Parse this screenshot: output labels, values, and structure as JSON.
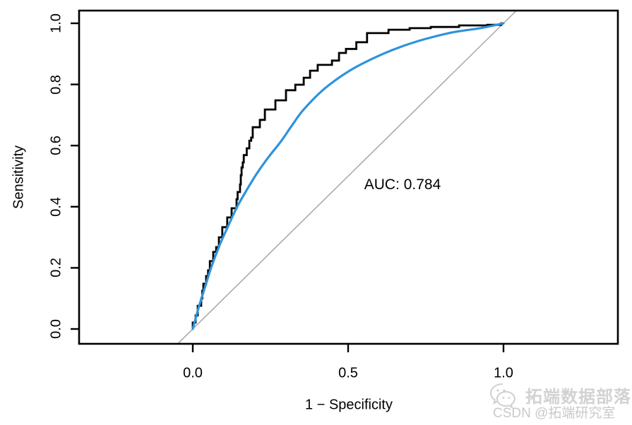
{
  "chart_data": {
    "type": "line",
    "title": "",
    "xlabel": "1 − Specificity",
    "ylabel": "Sensitivity",
    "xlim": [
      0,
      1
    ],
    "ylim": [
      0,
      1
    ],
    "x_ticks": {
      "values": [
        0.0,
        0.5,
        1.0
      ],
      "labels": [
        "0.0",
        "0.5",
        "1.0"
      ]
    },
    "y_ticks": {
      "values": [
        0.0,
        0.2,
        0.4,
        0.6,
        0.8,
        1.0
      ],
      "labels": [
        "0.0",
        "0.2",
        "0.4",
        "0.6",
        "0.8",
        "1.0"
      ]
    },
    "grid": false,
    "legend": "none",
    "annotation": {
      "text": "AUC: 0.784",
      "x": 0.675,
      "y": 0.47
    },
    "auc": 0.784,
    "series": [
      {
        "name": "empirical-roc",
        "style": "step",
        "color": "#000000",
        "width": 2.8,
        "points": [
          [
            0.0,
            0.0
          ],
          [
            0.009,
            0.021
          ],
          [
            0.016,
            0.044
          ],
          [
            0.027,
            0.076
          ],
          [
            0.034,
            0.125
          ],
          [
            0.043,
            0.148
          ],
          [
            0.055,
            0.192
          ],
          [
            0.066,
            0.222
          ],
          [
            0.084,
            0.268
          ],
          [
            0.095,
            0.3
          ],
          [
            0.111,
            0.333
          ],
          [
            0.125,
            0.365
          ],
          [
            0.141,
            0.395
          ],
          [
            0.152,
            0.448
          ],
          [
            0.157,
            0.503
          ],
          [
            0.164,
            0.545
          ],
          [
            0.182,
            0.591
          ],
          [
            0.193,
            0.626
          ],
          [
            0.216,
            0.66
          ],
          [
            0.232,
            0.684
          ],
          [
            0.266,
            0.718
          ],
          [
            0.3,
            0.748
          ],
          [
            0.33,
            0.781
          ],
          [
            0.357,
            0.799
          ],
          [
            0.402,
            0.845
          ],
          [
            0.448,
            0.864
          ],
          [
            0.493,
            0.903
          ],
          [
            0.561,
            0.938
          ],
          [
            0.63,
            0.968
          ],
          [
            0.698,
            0.979
          ],
          [
            0.766,
            0.984
          ],
          [
            0.857,
            0.988
          ],
          [
            0.948,
            0.993
          ],
          [
            0.993,
            0.995
          ],
          [
            1.0,
            1.0
          ]
        ]
      },
      {
        "name": "smoothed-roc",
        "style": "smooth",
        "color": "#2e93dc",
        "width": 3.2,
        "points": [
          [
            0.0,
            0.0
          ],
          [
            0.018,
            0.067
          ],
          [
            0.039,
            0.136
          ],
          [
            0.061,
            0.206
          ],
          [
            0.086,
            0.273
          ],
          [
            0.114,
            0.337
          ],
          [
            0.143,
            0.4
          ],
          [
            0.175,
            0.457
          ],
          [
            0.209,
            0.513
          ],
          [
            0.245,
            0.564
          ],
          [
            0.284,
            0.614
          ],
          [
            0.32,
            0.667
          ],
          [
            0.357,
            0.718
          ],
          [
            0.425,
            0.787
          ],
          [
            0.505,
            0.845
          ],
          [
            0.584,
            0.887
          ],
          [
            0.664,
            0.921
          ],
          [
            0.743,
            0.947
          ],
          [
            0.834,
            0.97
          ],
          [
            0.925,
            0.984
          ],
          [
            1.0,
            1.0
          ]
        ]
      }
    ],
    "reference_line": {
      "name": "chance-diagonal",
      "slope": 1,
      "intercept": 0,
      "color": "#a6a6a6",
      "width": 1.5
    }
  },
  "watermark": {
    "icon": "wechat-icon",
    "line1": "拓端数据部落",
    "line2": "CSDN @拓端研究室"
  }
}
